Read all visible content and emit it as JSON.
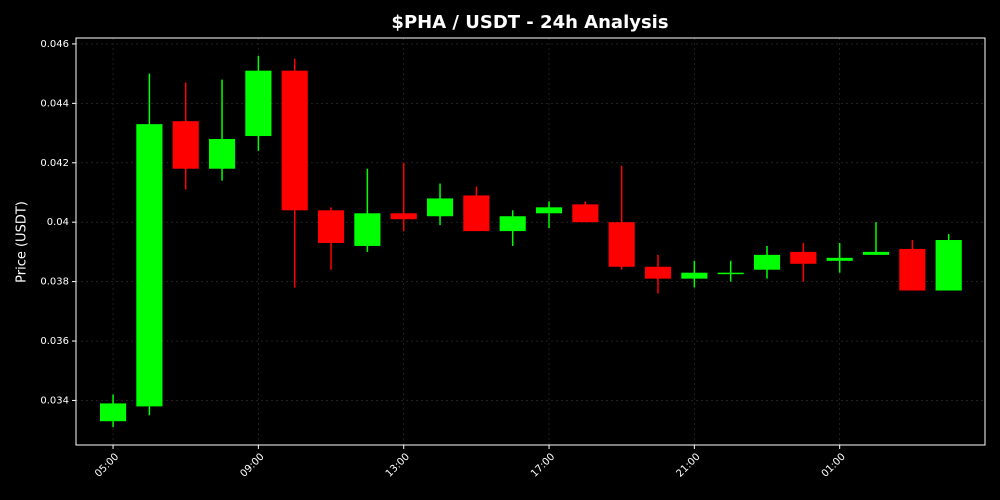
{
  "chart_data": {
    "type": "candlestick",
    "title": "$PHA / USDT - 24h Analysis",
    "y_label": "Price (USDT)",
    "categories": [
      "05:00",
      null,
      null,
      null,
      "09:00",
      null,
      null,
      null,
      "13:00",
      null,
      null,
      null,
      "17:00",
      null,
      null,
      null,
      "21:00",
      null,
      null,
      null,
      "01:00",
      null,
      null,
      null
    ],
    "open": [
      0.0333,
      0.0338,
      0.0434,
      0.0418,
      0.0429,
      0.0451,
      0.0404,
      0.0392,
      0.0403,
      0.0402,
      0.0409,
      0.0397,
      0.0403,
      0.0406,
      0.04,
      0.0385,
      0.0381,
      0.0383,
      0.0384,
      0.039,
      0.0387,
      0.0389,
      0.0391,
      0.0377
    ],
    "high": [
      0.0342,
      0.045,
      0.0447,
      0.0448,
      0.0456,
      0.0455,
      0.0405,
      0.0418,
      0.042,
      0.0413,
      0.0412,
      0.0404,
      0.0407,
      0.0407,
      0.0419,
      0.0389,
      0.0387,
      0.0387,
      0.0392,
      0.0393,
      0.0393,
      0.04,
      0.0394,
      0.0396
    ],
    "low": [
      0.0331,
      0.0335,
      0.0411,
      0.0414,
      0.0424,
      0.0378,
      0.0384,
      0.039,
      0.0397,
      0.0399,
      0.0397,
      0.0392,
      0.0398,
      0.04,
      0.0384,
      0.0376,
      0.0378,
      0.038,
      0.0381,
      0.038,
      0.0383,
      0.0389,
      0.0377,
      0.0377
    ],
    "close": [
      0.0339,
      0.0433,
      0.0418,
      0.0428,
      0.0451,
      0.0404,
      0.0393,
      0.0403,
      0.0401,
      0.0408,
      0.0397,
      0.0402,
      0.0405,
      0.04,
      0.0385,
      0.0381,
      0.0383,
      0.0383,
      0.0389,
      0.0386,
      0.0388,
      0.039,
      0.0377,
      0.0394
    ],
    "up_color": "#00ff00",
    "down_color": "#ff0000",
    "ylim": [
      0.0325,
      0.0462
    ],
    "yticks": [
      0.034,
      0.036,
      0.038,
      0.04,
      0.042,
      0.044,
      0.046
    ],
    "grid": true
  }
}
